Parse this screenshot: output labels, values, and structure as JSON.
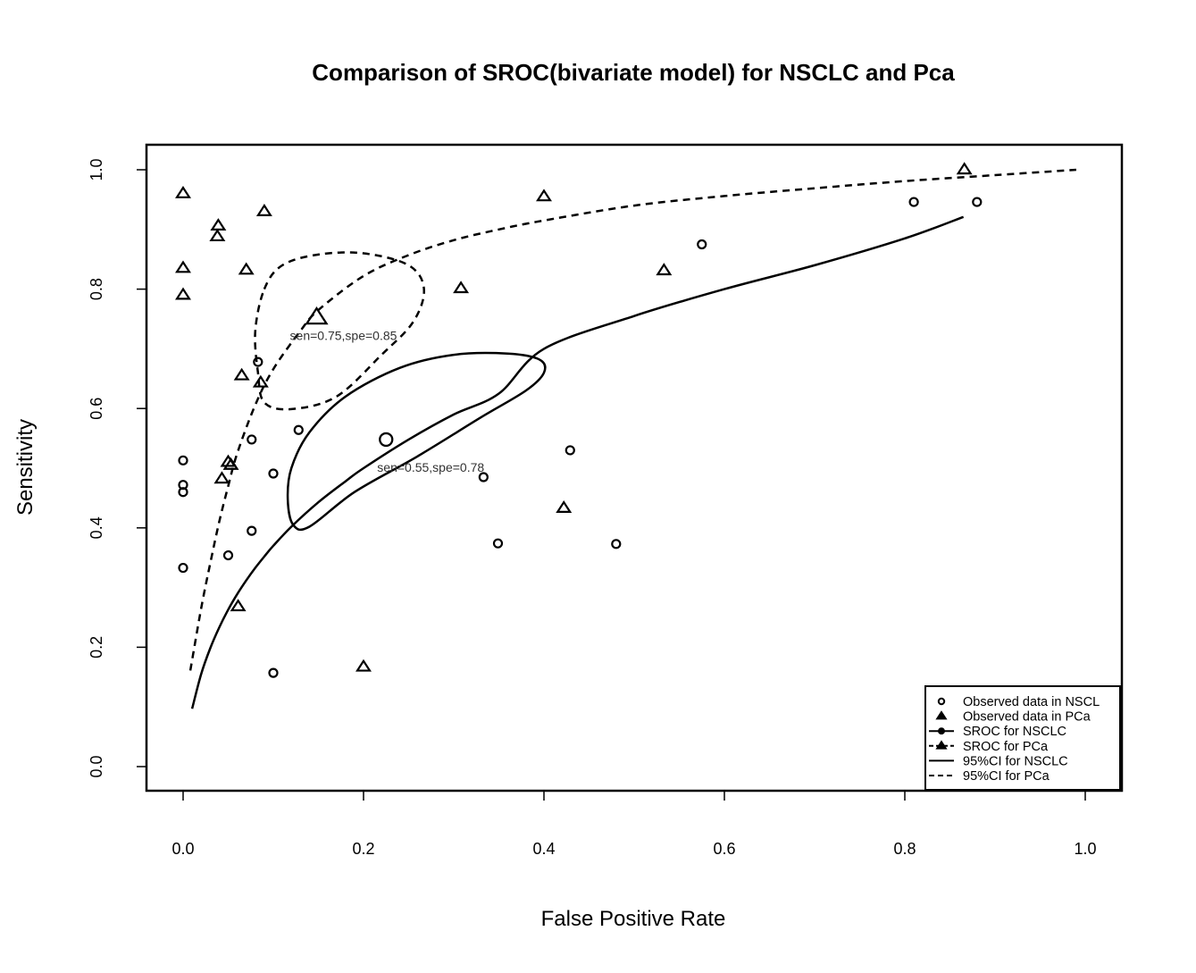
{
  "chart_data": {
    "type": "scatter",
    "title": "Comparison of SROC(bivariate model) for NSCLC and Pca",
    "xlabel": "False Positive Rate",
    "ylabel": "Sensitivity",
    "xlim": [
      0.0,
      1.0
    ],
    "ylim": [
      0.0,
      1.0
    ],
    "x_ticks": [
      "0.0",
      "0.2",
      "0.4",
      "0.6",
      "0.8",
      "1.0"
    ],
    "y_ticks": [
      "0.0",
      "0.2",
      "0.4",
      "0.6",
      "0.8",
      "1.0"
    ],
    "grid": false,
    "legend_position": "bottom-right",
    "series": [
      {
        "name": "Observed data in NSCL",
        "marker": "circle",
        "points": [
          [
            0.0,
            0.513
          ],
          [
            0.0,
            0.472
          ],
          [
            0.0,
            0.46
          ],
          [
            0.0,
            0.333
          ],
          [
            0.05,
            0.354
          ],
          [
            0.076,
            0.548
          ],
          [
            0.076,
            0.395
          ],
          [
            0.083,
            0.678
          ],
          [
            0.1,
            0.491
          ],
          [
            0.1,
            0.157
          ],
          [
            0.128,
            0.564
          ],
          [
            0.333,
            0.485
          ],
          [
            0.349,
            0.374
          ],
          [
            0.429,
            0.53
          ],
          [
            0.48,
            0.373
          ],
          [
            0.575,
            0.875
          ],
          [
            0.81,
            0.946
          ],
          [
            0.88,
            0.946
          ]
        ]
      },
      {
        "name": "Observed data in PCa",
        "marker": "triangle",
        "points": [
          [
            0.0,
            0.96
          ],
          [
            0.0,
            0.835
          ],
          [
            0.0,
            0.79
          ],
          [
            0.039,
            0.906
          ],
          [
            0.038,
            0.888
          ],
          [
            0.07,
            0.832
          ],
          [
            0.09,
            0.93
          ],
          [
            0.065,
            0.655
          ],
          [
            0.086,
            0.643
          ],
          [
            0.05,
            0.51
          ],
          [
            0.053,
            0.505
          ],
          [
            0.043,
            0.482
          ],
          [
            0.061,
            0.268
          ],
          [
            0.2,
            0.167
          ],
          [
            0.308,
            0.801
          ],
          [
            0.4,
            0.955
          ],
          [
            0.533,
            0.831
          ],
          [
            0.866,
            1.0
          ],
          [
            0.422,
            0.433
          ]
        ]
      },
      {
        "name": "SROC for NSCLC",
        "line": "solid",
        "points": [
          [
            0.01,
            0.097
          ],
          [
            0.02,
            0.155
          ],
          [
            0.03,
            0.198
          ],
          [
            0.04,
            0.233
          ],
          [
            0.05,
            0.263
          ],
          [
            0.06,
            0.289
          ],
          [
            0.07,
            0.312
          ],
          [
            0.08,
            0.333
          ],
          [
            0.09,
            0.352
          ],
          [
            0.1,
            0.37
          ],
          [
            0.12,
            0.402
          ],
          [
            0.15,
            0.443
          ],
          [
            0.18,
            0.478
          ],
          [
            0.2,
            0.5
          ],
          [
            0.25,
            0.548
          ],
          [
            0.3,
            0.59
          ],
          [
            0.35,
            0.625
          ],
          [
            0.4,
            0.7
          ],
          [
            0.5,
            0.755
          ],
          [
            0.6,
            0.8
          ],
          [
            0.7,
            0.84
          ],
          [
            0.8,
            0.885
          ],
          [
            0.865,
            0.921
          ]
        ]
      },
      {
        "name": "SROC for PCa",
        "line": "dashed",
        "points": [
          [
            0.008,
            0.161
          ],
          [
            0.02,
            0.265
          ],
          [
            0.03,
            0.34
          ],
          [
            0.04,
            0.41
          ],
          [
            0.05,
            0.47
          ],
          [
            0.06,
            0.525
          ],
          [
            0.08,
            0.606
          ],
          [
            0.1,
            0.666
          ],
          [
            0.13,
            0.73
          ],
          [
            0.15,
            0.765
          ],
          [
            0.2,
            0.822
          ],
          [
            0.25,
            0.857
          ],
          [
            0.3,
            0.882
          ],
          [
            0.35,
            0.9
          ],
          [
            0.4,
            0.915
          ],
          [
            0.5,
            0.94
          ],
          [
            0.6,
            0.956
          ],
          [
            0.7,
            0.969
          ],
          [
            0.8,
            0.981
          ],
          [
            0.9,
            0.991
          ],
          [
            0.99,
            1.0
          ]
        ]
      },
      {
        "name": "95%CI for NSCLC",
        "line": "solid",
        "ellipse": {
          "cx": 0.225,
          "cy": 0.548,
          "points": [
            [
              0.116,
              0.448
            ],
            [
              0.12,
              0.5
            ],
            [
              0.14,
              0.56
            ],
            [
              0.18,
              0.62
            ],
            [
              0.24,
              0.668
            ],
            [
              0.3,
              0.69
            ],
            [
              0.36,
              0.692
            ],
            [
              0.395,
              0.682
            ],
            [
              0.4,
              0.66
            ],
            [
              0.38,
              0.63
            ],
            [
              0.33,
              0.585
            ],
            [
              0.26,
              0.52
            ],
            [
              0.19,
              0.46
            ],
            [
              0.14,
              0.402
            ],
            [
              0.122,
              0.405
            ],
            [
              0.116,
              0.448
            ]
          ]
        }
      },
      {
        "name": "95%CI for PCa",
        "line": "dashed",
        "ellipse": {
          "cx": 0.148,
          "cy": 0.752,
          "points": [
            [
              0.09,
              0.8
            ],
            [
              0.11,
              0.84
            ],
            [
              0.15,
              0.858
            ],
            [
              0.2,
              0.86
            ],
            [
              0.25,
              0.84
            ],
            [
              0.267,
              0.8
            ],
            [
              0.255,
              0.745
            ],
            [
              0.22,
              0.69
            ],
            [
              0.17,
              0.62
            ],
            [
              0.12,
              0.599
            ],
            [
              0.09,
              0.61
            ],
            [
              0.083,
              0.66
            ],
            [
              0.08,
              0.73
            ],
            [
              0.09,
              0.8
            ]
          ]
        }
      }
    ],
    "summary_points": [
      {
        "series": "SROC for NSCLC",
        "marker": "circle",
        "x": 0.225,
        "y": 0.548,
        "label": "sen=0.55,spe=0.78"
      },
      {
        "series": "SROC for PCa",
        "marker": "triangle",
        "x": 0.148,
        "y": 0.752,
        "label": "sen=0.75,spe=0.85"
      }
    ]
  },
  "legend": {
    "items": [
      {
        "label": "Observed data in NSCL",
        "symbol": "circle"
      },
      {
        "label": "Observed data in PCa",
        "symbol": "triangle"
      },
      {
        "label": "SROC for NSCLC",
        "symbol": "line-circle"
      },
      {
        "label": "SROC for PCa",
        "symbol": "line-triangle"
      },
      {
        "label": "95%CI for NSCLC",
        "symbol": "solid"
      },
      {
        "label": "95%CI for PCa",
        "symbol": "dashed"
      }
    ]
  }
}
